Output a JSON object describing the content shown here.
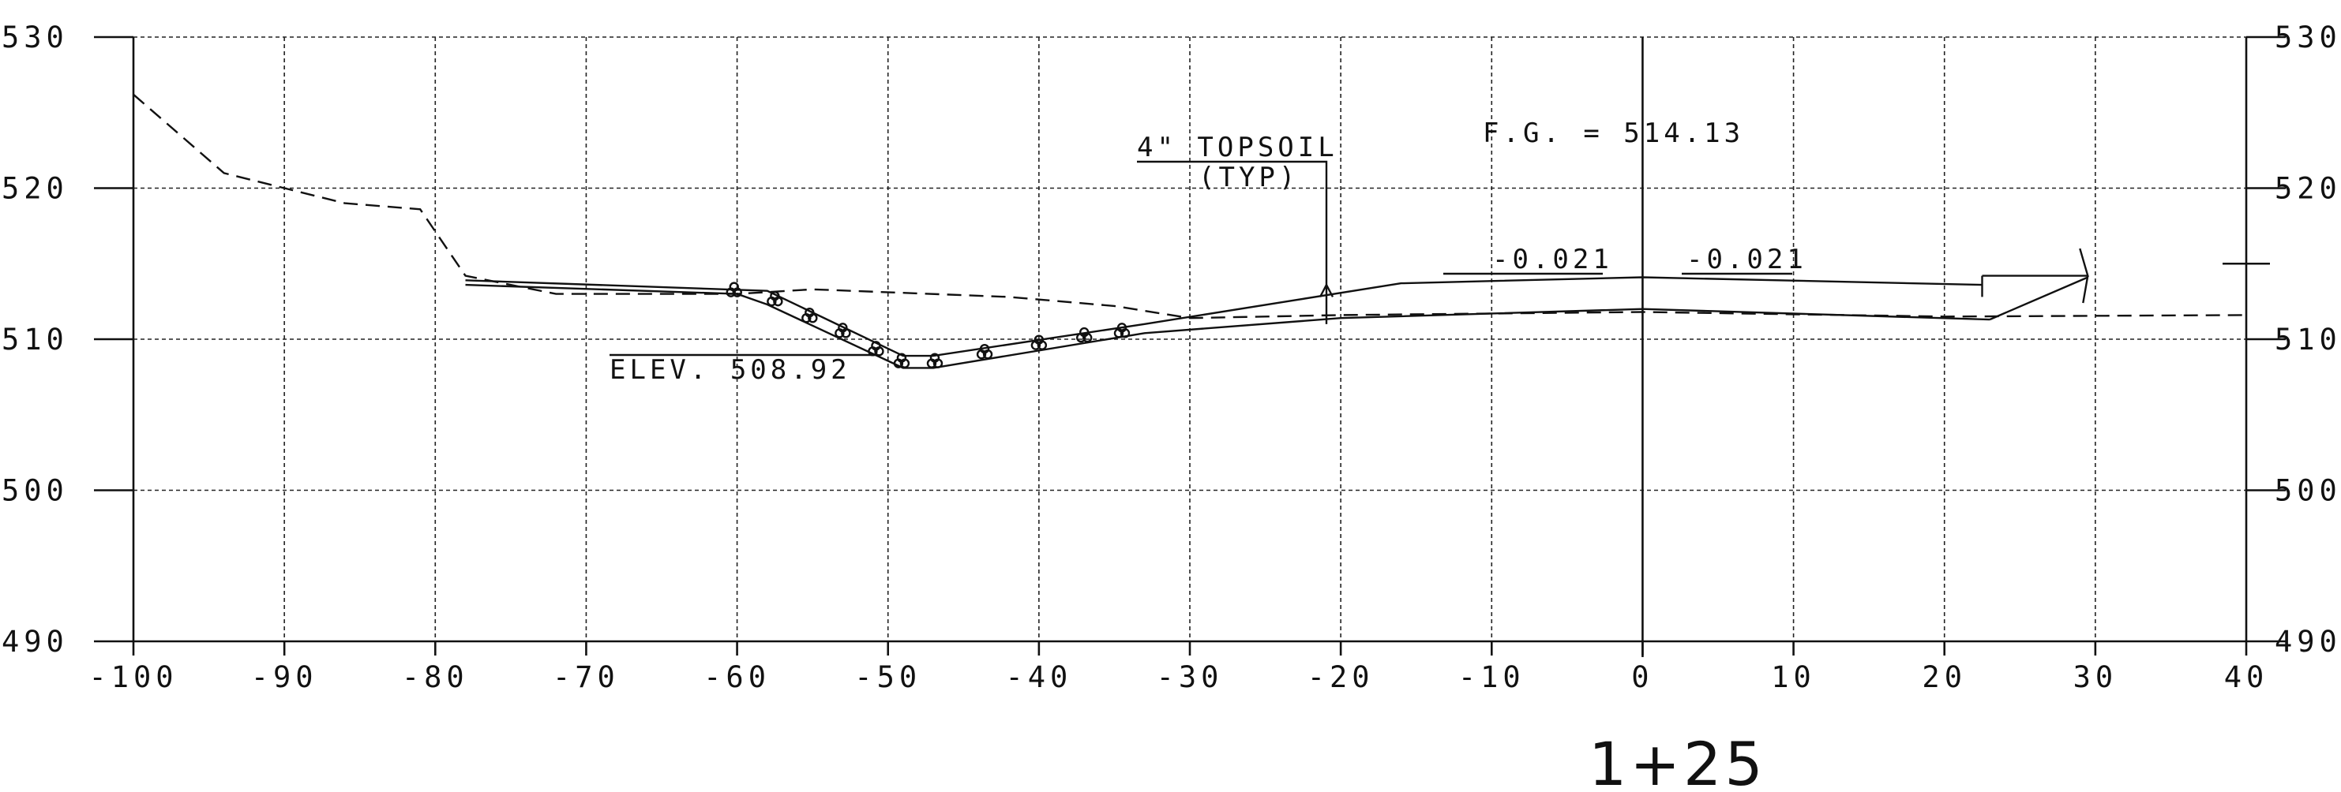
{
  "y_axis": {
    "min": 490,
    "max": 530,
    "step": 10,
    "ticks": [
      "490",
      "500",
      "510",
      "520",
      "530"
    ]
  },
  "x_axis": {
    "min": -100,
    "max": 40,
    "step": 10,
    "ticks": [
      "-100",
      "-90",
      "-80",
      "-70",
      "-60",
      "-50",
      "-40",
      "-30",
      "-20",
      "-10",
      "0",
      "10",
      "20",
      "30",
      "40"
    ]
  },
  "annotations": {
    "topsoil_line1": "4\" TOPSOIL",
    "topsoil_line2": "(TYP)",
    "finish_grade": "F.G. = 514.13",
    "slope_left": "-0.021",
    "slope_right": "-0.021",
    "ditch_elev": "ELEV. 508.92"
  },
  "station_label": "1+25",
  "profiles": {
    "existing_ground": [
      [
        -100,
        526.2
      ],
      [
        -94,
        521
      ],
      [
        -86,
        519
      ],
      [
        -81,
        518.6
      ],
      [
        -78,
        514.2
      ],
      [
        -72,
        513
      ],
      [
        -60,
        513
      ],
      [
        -55,
        513.3
      ],
      [
        -42,
        512.8
      ],
      [
        -35,
        512.2
      ],
      [
        -30,
        511.4
      ],
      [
        -20,
        511.6
      ],
      [
        0,
        511.8
      ],
      [
        20,
        511.5
      ],
      [
        40,
        511.6
      ]
    ],
    "proposed_top": [
      [
        -78,
        513.9
      ],
      [
        -58,
        513.2
      ],
      [
        -49,
        508.9
      ],
      [
        -47,
        508.9
      ],
      [
        -33,
        511
      ],
      [
        -16,
        513.7
      ],
      [
        0,
        514.1
      ],
      [
        22.5,
        513.6
      ]
    ],
    "proposed_bottom": [
      [
        -78,
        513.6
      ],
      [
        -60,
        513
      ],
      [
        -58,
        512.3
      ],
      [
        -49,
        508.1
      ],
      [
        -47,
        508.1
      ],
      [
        -33,
        510.4
      ],
      [
        -20,
        511.4
      ],
      [
        0,
        512
      ],
      [
        23,
        511.3
      ]
    ],
    "seed_points": [
      [
        -60.2,
        513.1
      ],
      [
        -57.5,
        512.5
      ],
      [
        -55.2,
        511.4
      ],
      [
        -53,
        510.4
      ],
      [
        -50.8,
        509.2
      ],
      [
        -49.1,
        508.4
      ],
      [
        -46.9,
        508.4
      ],
      [
        -43.6,
        509
      ],
      [
        -40,
        509.6
      ],
      [
        -37,
        510.1
      ],
      [
        -34.5,
        510.4
      ]
    ]
  }
}
